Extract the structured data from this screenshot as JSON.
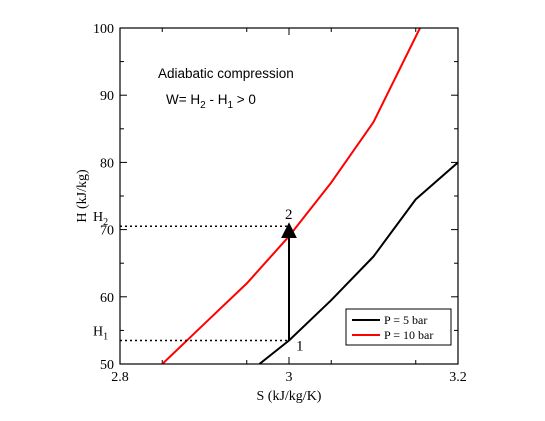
{
  "chart_data": {
    "type": "line",
    "xlabel": "S (kJ/kg/K)",
    "ylabel": "H (kJ/kg)",
    "xlim": [
      2.8,
      3.2
    ],
    "ylim": [
      50,
      100
    ],
    "x_ticks": [
      "2.8",
      "3",
      "3.2"
    ],
    "y_ticks": [
      "50",
      "60",
      "70",
      "80",
      "90",
      "100"
    ],
    "grid": false,
    "legend_position": "bottom-right",
    "series": [
      {
        "name": "P = 5 bar",
        "color": "#000000",
        "points": [
          [
            2.965,
            50
          ],
          [
            3.0,
            53.5
          ],
          [
            3.05,
            59.5
          ],
          [
            3.1,
            66
          ],
          [
            3.15,
            74.5
          ],
          [
            3.2,
            80
          ]
        ]
      },
      {
        "name": "P = 10 bar",
        "color": "#ff0000",
        "points": [
          [
            2.85,
            50
          ],
          [
            2.9,
            56
          ],
          [
            2.95,
            62
          ],
          [
            3.0,
            69
          ],
          [
            3.05,
            77
          ],
          [
            3.1,
            86
          ],
          [
            3.155,
            100
          ]
        ]
      }
    ],
    "process": {
      "from_point": {
        "label": "1",
        "s": 3.0,
        "h": 53.5
      },
      "to_point": {
        "label": "2",
        "s": 3.0,
        "h": 70.5
      },
      "arrow": true
    },
    "h_markers": [
      {
        "base": "H",
        "sub": "1",
        "value": 53.5
      },
      {
        "base": "H",
        "sub": "2",
        "value": 70.5
      }
    ],
    "annotations": {
      "title_line": "Adiabatic compression",
      "formula": {
        "w": "W= H",
        "s2": "2",
        "minus": " - H",
        "s1": "1",
        "tail": " > 0"
      }
    }
  }
}
